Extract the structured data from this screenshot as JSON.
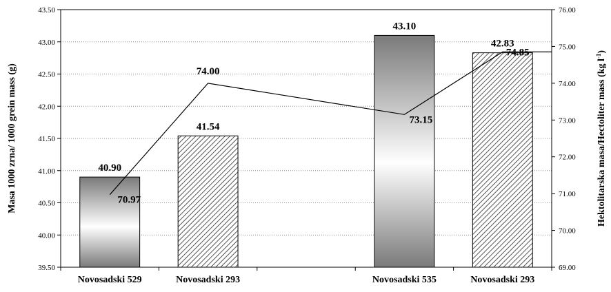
{
  "chart_data": {
    "type": "bar",
    "categories": [
      "Novosadski 529",
      "Novosadski 293",
      "Novosadski 535",
      "Novosadski 293"
    ],
    "bar_slots": [
      0,
      1,
      3,
      4
    ],
    "bar_patterns": [
      "gradient",
      "hatch",
      "gradient",
      "hatch"
    ],
    "series": [
      {
        "type": "bar",
        "axis": "left",
        "values": [
          40.9,
          41.54,
          43.1,
          42.83
        ],
        "labels": [
          "40.90",
          "41.54",
          "43.10",
          "42.83"
        ]
      },
      {
        "type": "line",
        "axis": "right",
        "values": [
          70.97,
          74.0,
          73.15,
          74.85
        ],
        "labels": [
          "70.97",
          "74.00",
          "73.15",
          "74.85"
        ]
      }
    ],
    "ylabel_left": "Masa 1000 zrna/ 1000 grein mass (g)",
    "ylabel_right": "Hektolitarska masa/Hectoliter mass (kg l",
    "ylabel_right_sup": "-1",
    "ylabel_right_end": ")",
    "ylim_left": [
      39.5,
      43.5
    ],
    "ylim_right": [
      69.0,
      76.0
    ],
    "yticks_left": [
      "39.50",
      "40.00",
      "40.50",
      "41.00",
      "41.50",
      "42.00",
      "42.50",
      "43.00",
      "43.50"
    ],
    "yticks_right": [
      "69.00",
      "70.00",
      "71.00",
      "72.00",
      "73.00",
      "74.00",
      "75.00",
      "76.00"
    ],
    "grid": true,
    "colors": {
      "bar_dark": "#707070",
      "bar_light": "#ffffff",
      "hatch": "#555555",
      "line": "#000000",
      "grid": "#8a8a8a"
    }
  }
}
